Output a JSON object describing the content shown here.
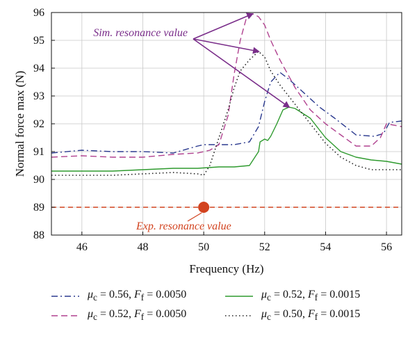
{
  "chart_data": {
    "type": "line",
    "title": "",
    "xlabel": "Frequency (Hz)",
    "ylabel": "Normal force max (N)",
    "xlim": [
      45,
      56.5
    ],
    "ylim": [
      88,
      96
    ],
    "xticks": [
      46,
      48,
      50,
      52,
      54,
      56
    ],
    "yticks": [
      88,
      89,
      90,
      91,
      92,
      93,
      94,
      95,
      96
    ],
    "grid": true,
    "series": [
      {
        "name": "μc = 0.56, Ff = 0.0050",
        "color": "#2b3a8f",
        "dash": "dashdot",
        "x": [
          45,
          46,
          47,
          48,
          49,
          49.8,
          50,
          50.5,
          51,
          51.5,
          51.8,
          52.0,
          52.2,
          52.5,
          52.8,
          53.2,
          53.8,
          54.3,
          55.0,
          55.6,
          55.9,
          56.1,
          56.5
        ],
        "y": [
          90.95,
          91.05,
          91.0,
          91.0,
          90.95,
          91.2,
          91.25,
          91.25,
          91.25,
          91.35,
          91.9,
          92.8,
          93.5,
          93.85,
          93.6,
          93.2,
          92.6,
          92.2,
          91.6,
          91.55,
          91.65,
          92.05,
          92.1
        ]
      },
      {
        "name": "μc = 0.52, Ff = 0.0050",
        "color": "#b0418f",
        "dash": "dash",
        "x": [
          45,
          46,
          47,
          48,
          49,
          49.8,
          50,
          50.2,
          50.5,
          50.8,
          51.0,
          51.2,
          51.4,
          51.6,
          51.8,
          52.0,
          52.2,
          52.5,
          53.0,
          53.5,
          54.0,
          54.5,
          55.0,
          55.5,
          55.8,
          56.0,
          56.5
        ],
        "y": [
          90.8,
          90.85,
          90.8,
          90.8,
          90.9,
          90.95,
          91.0,
          91.05,
          91.25,
          92.3,
          93.8,
          95.0,
          95.8,
          95.95,
          95.85,
          95.55,
          95.0,
          94.3,
          93.3,
          92.5,
          92.0,
          91.6,
          91.2,
          91.2,
          91.5,
          92.0,
          91.9
        ]
      },
      {
        "name": "μc = 0.52, Ff = 0.0015",
        "color": "#2e9a2e",
        "dash": "solid",
        "x": [
          45,
          46,
          47,
          48,
          49,
          49.8,
          50.5,
          51.0,
          51.5,
          51.8,
          51.85,
          52.0,
          52.1,
          52.2,
          52.4,
          52.6,
          52.8,
          53.0,
          53.5,
          54.0,
          54.5,
          55.0,
          55.5,
          56.0,
          56.5
        ],
        "y": [
          90.3,
          90.3,
          90.3,
          90.35,
          90.4,
          90.4,
          90.45,
          90.45,
          90.5,
          91.0,
          91.35,
          91.45,
          91.4,
          91.55,
          92.0,
          92.5,
          92.6,
          92.55,
          92.2,
          91.5,
          91.0,
          90.8,
          90.7,
          90.65,
          90.55
        ]
      },
      {
        "name": "μc = 0.50, Ff = 0.0015",
        "color": "#222222",
        "dash": "dot",
        "x": [
          45,
          46,
          47,
          48,
          49,
          49.8,
          50.0,
          50.2,
          50.5,
          50.8,
          51.0,
          51.2,
          51.5,
          51.8,
          52.0,
          52.2,
          52.5,
          53.0,
          53.5,
          54.0,
          54.5,
          55.0,
          55.5,
          56.0,
          56.5
        ],
        "y": [
          90.15,
          90.15,
          90.15,
          90.2,
          90.25,
          90.2,
          90.15,
          90.5,
          91.5,
          92.5,
          93.3,
          93.9,
          94.3,
          94.6,
          94.4,
          93.9,
          93.4,
          92.7,
          92.0,
          91.3,
          90.8,
          90.5,
          90.35,
          90.35,
          90.35
        ]
      }
    ],
    "reference_line": {
      "y": 89,
      "color": "#d2431f",
      "style": "dash"
    },
    "marker": {
      "x": 50,
      "y": 89,
      "color": "#d2431f"
    },
    "annotations": [
      {
        "text": "Sim. resonance value",
        "color": "#7a2e8a",
        "arrow_targets": [
          {
            "x": 51.6,
            "y": 95.95
          },
          {
            "x": 51.8,
            "y": 94.6
          },
          {
            "x": 52.8,
            "y": 92.6
          }
        ]
      },
      {
        "text": "Exp. resonance value",
        "color": "#d2431f",
        "points_to": {
          "x": 50,
          "y": 89
        }
      }
    ]
  },
  "legend": [
    {
      "mu": "μ",
      "mu_sub": "c",
      "mu_val": " = 0.56, ",
      "f": "F",
      "f_sub": "f",
      "f_val": " = 0.0050"
    },
    {
      "mu": "μ",
      "mu_sub": "c",
      "mu_val": " = 0.52, ",
      "f": "F",
      "f_sub": "f",
      "f_val": " = 0.0050"
    },
    {
      "mu": "μ",
      "mu_sub": "c",
      "mu_val": " = 0.52, ",
      "f": "F",
      "f_sub": "f",
      "f_val": " = 0.0015"
    },
    {
      "mu": "μ",
      "mu_sub": "c",
      "mu_val": " = 0.50, ",
      "f": "F",
      "f_sub": "f",
      "f_val": " = 0.0015"
    }
  ]
}
